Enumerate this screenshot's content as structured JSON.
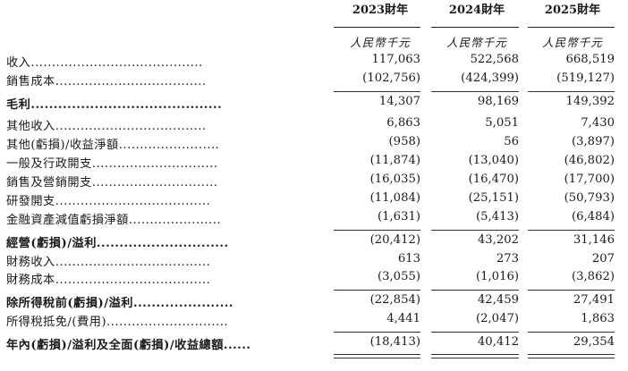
{
  "columns": [
    {
      "year": "2023財年",
      "unit": "人民幣千元"
    },
    {
      "year": "2024財年",
      "unit": "人民幣千元"
    },
    {
      "year": "2025財年",
      "unit": "人民幣千元"
    }
  ],
  "rows": [
    {
      "label": "收入.........................................",
      "bold": false,
      "values": [
        "117,063",
        "522,568",
        "668,519"
      ]
    },
    {
      "label": "銷售成本....................................",
      "bold": false,
      "values": [
        "(102,756)",
        "(424,399)",
        "(519,127)"
      ]
    },
    {
      "label": "毛利..........................................",
      "bold": true,
      "values": [
        "14,307",
        "98,169",
        "149,392"
      ]
    },
    {
      "label": "其他收入....................................",
      "bold": false,
      "values": [
        "6,863",
        "5,051",
        "7,430"
      ]
    },
    {
      "label": "其他(虧損)/收益淨額........................",
      "bold": false,
      "values": [
        "(958)",
        "56",
        "(3,897)"
      ]
    },
    {
      "label": "一般及行政開支..............................",
      "bold": false,
      "values": [
        "(11,874)",
        "(13,040)",
        "(46,802)"
      ]
    },
    {
      "label": "銷售及營銷開支..............................",
      "bold": false,
      "values": [
        "(16,035)",
        "(16,470)",
        "(17,700)"
      ]
    },
    {
      "label": "研發開支.....................................",
      "bold": false,
      "values": [
        "(11,084)",
        "(25,151)",
        "(50,793)"
      ]
    },
    {
      "label": "金融資產減值虧損淨額......................",
      "bold": false,
      "values": [
        "(1,631)",
        "(5,413)",
        "(6,484)"
      ]
    },
    {
      "label": "經營(虧損)/溢利.............................",
      "bold": true,
      "values": [
        "(20,412)",
        "43,202",
        "31,146"
      ]
    },
    {
      "label": "財務收入.....................................",
      "bold": false,
      "values": [
        "613",
        "273",
        "207"
      ]
    },
    {
      "label": "財務成本.....................................",
      "bold": false,
      "values": [
        "(3,055)",
        "(1,016)",
        "(3,862)"
      ]
    },
    {
      "label": "除所得稅前(虧損)/溢利......................",
      "bold": true,
      "values": [
        "(22,854)",
        "42,459",
        "27,491"
      ]
    },
    {
      "label": "所得稅抵免/(費用).............................",
      "bold": false,
      "values": [
        "4,441",
        "(2,047)",
        "1,863"
      ]
    },
    {
      "label": "年內(虧損)/溢利及全面(虧損)/收益總額......",
      "bold": true,
      "values": [
        "(18,413)",
        "40,412",
        "29,354"
      ]
    }
  ]
}
